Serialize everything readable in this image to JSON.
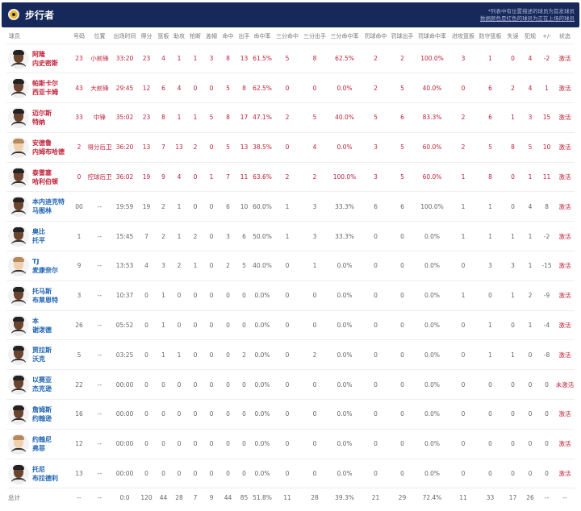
{
  "team": {
    "name": "步行者",
    "logo_color": "#f2b619",
    "header_bg": "#17295a"
  },
  "notes": [
    "*列表中有位置描述的球员为首发球员",
    "数据颜色是红色的球员为正在上场的球员"
  ],
  "columns": [
    "球员",
    "号码",
    "位置",
    "出场时间",
    "得分",
    "篮板",
    "助攻",
    "抢断",
    "盖帽",
    "命中",
    "出手",
    "命中率",
    "三分命中",
    "三分出手",
    "三分命中率",
    "罚球命中",
    "罚球出手",
    "罚球命中率",
    "进攻篮板",
    "防守篮板",
    "失误",
    "犯规",
    "+/-",
    "状态"
  ],
  "players": [
    {
      "name1": "阿隆",
      "name2": "内史密斯",
      "starter": true,
      "light": false,
      "stats": [
        "23",
        "小前锋",
        "33:20",
        "23",
        "4",
        "1",
        "1",
        "3",
        "8",
        "13",
        "61.5%",
        "5",
        "8",
        "62.5%",
        "2",
        "2",
        "100.0%",
        "3",
        "1",
        "0",
        "4",
        "-2",
        "激活"
      ]
    },
    {
      "name1": "帕斯卡尔",
      "name2": "西亚卡姆",
      "starter": true,
      "light": false,
      "stats": [
        "43",
        "大前锋",
        "29:45",
        "12",
        "6",
        "4",
        "0",
        "0",
        "5",
        "8",
        "62.5%",
        "0",
        "0",
        "0.0%",
        "2",
        "5",
        "40.0%",
        "0",
        "6",
        "2",
        "4",
        "1",
        "激活"
      ]
    },
    {
      "name1": "迈尔斯",
      "name2": "特纳",
      "starter": true,
      "light": false,
      "stats": [
        "33",
        "中锋",
        "35:02",
        "23",
        "8",
        "1",
        "1",
        "5",
        "8",
        "17",
        "47.1%",
        "2",
        "5",
        "40.0%",
        "5",
        "6",
        "83.3%",
        "2",
        "6",
        "1",
        "3",
        "15",
        "激活"
      ]
    },
    {
      "name1": "安德鲁",
      "name2": "内姆布哈德",
      "starter": true,
      "light": true,
      "stats": [
        "2",
        "得分后卫",
        "36:20",
        "13",
        "7",
        "13",
        "2",
        "0",
        "5",
        "13",
        "38.5%",
        "0",
        "4",
        "0.0%",
        "3",
        "5",
        "60.0%",
        "2",
        "5",
        "8",
        "5",
        "10",
        "激活"
      ]
    },
    {
      "name1": "泰雷塞",
      "name2": "哈利伯顿",
      "starter": true,
      "light": false,
      "stats": [
        "0",
        "控球后卫",
        "36:02",
        "19",
        "9",
        "4",
        "0",
        "1",
        "7",
        "11",
        "63.6%",
        "2",
        "2",
        "100.0%",
        "3",
        "5",
        "60.0%",
        "1",
        "8",
        "0",
        "1",
        "11",
        "激活"
      ]
    },
    {
      "name1": "本内迪克特",
      "name2": "马图林",
      "starter": false,
      "light": false,
      "stats": [
        "00",
        "--",
        "19:59",
        "19",
        "2",
        "1",
        "0",
        "0",
        "6",
        "10",
        "60.0%",
        "1",
        "3",
        "33.3%",
        "6",
        "6",
        "100.0%",
        "1",
        "1",
        "0",
        "4",
        "8",
        "激活"
      ]
    },
    {
      "name1": "奥比",
      "name2": "托平",
      "starter": false,
      "light": false,
      "stats": [
        "1",
        "--",
        "15:45",
        "7",
        "2",
        "1",
        "2",
        "0",
        "3",
        "6",
        "50.0%",
        "1",
        "3",
        "33.3%",
        "0",
        "0",
        "0.0%",
        "1",
        "1",
        "1",
        "1",
        "-2",
        "激活"
      ]
    },
    {
      "name1": "TJ",
      "name2": "麦康奈尔",
      "starter": false,
      "light": true,
      "stats": [
        "9",
        "--",
        "13:53",
        "4",
        "3",
        "2",
        "1",
        "0",
        "2",
        "5",
        "40.0%",
        "0",
        "1",
        "0.0%",
        "0",
        "0",
        "0.0%",
        "0",
        "3",
        "3",
        "1",
        "-15",
        "激活"
      ]
    },
    {
      "name1": "托马斯",
      "name2": "布莱恩特",
      "starter": false,
      "light": false,
      "stats": [
        "3",
        "--",
        "10:37",
        "0",
        "1",
        "0",
        "0",
        "0",
        "0",
        "0",
        "0.0%",
        "0",
        "0",
        "0.0%",
        "0",
        "0",
        "0.0%",
        "1",
        "0",
        "1",
        "2",
        "-9",
        "激活"
      ]
    },
    {
      "name1": "本",
      "name2": "谢泼德",
      "starter": false,
      "light": false,
      "stats": [
        "26",
        "--",
        "05:52",
        "0",
        "1",
        "0",
        "0",
        "0",
        "0",
        "0",
        "0.0%",
        "0",
        "0",
        "0.0%",
        "0",
        "0",
        "0.0%",
        "0",
        "1",
        "0",
        "1",
        "-4",
        "激活"
      ]
    },
    {
      "name1": "贾拉斯",
      "name2": "沃克",
      "starter": false,
      "light": false,
      "stats": [
        "5",
        "--",
        "03:25",
        "0",
        "1",
        "1",
        "0",
        "0",
        "0",
        "2",
        "0.0%",
        "0",
        "2",
        "0.0%",
        "0",
        "0",
        "0.0%",
        "0",
        "1",
        "1",
        "0",
        "-8",
        "激活"
      ]
    },
    {
      "name1": "以赛亚",
      "name2": "杰克逊",
      "starter": false,
      "light": false,
      "stats": [
        "22",
        "--",
        "00:00",
        "0",
        "0",
        "0",
        "0",
        "0",
        "0",
        "0",
        "0.0%",
        "0",
        "0",
        "0.0%",
        "0",
        "0",
        "0.0%",
        "0",
        "0",
        "0",
        "0",
        "0",
        "未激活"
      ]
    },
    {
      "name1": "詹姆斯",
      "name2": "约翰逊",
      "starter": false,
      "light": false,
      "stats": [
        "16",
        "--",
        "00:00",
        "0",
        "0",
        "0",
        "0",
        "0",
        "0",
        "0",
        "0.0%",
        "0",
        "0",
        "0.0%",
        "0",
        "0",
        "0.0%",
        "0",
        "0",
        "0",
        "0",
        "0",
        "激活"
      ]
    },
    {
      "name1": "约翰尼",
      "name2": "弗菲",
      "starter": false,
      "light": true,
      "stats": [
        "12",
        "--",
        "00:00",
        "0",
        "0",
        "0",
        "0",
        "0",
        "0",
        "0",
        "0.0%",
        "0",
        "0",
        "0.0%",
        "0",
        "0",
        "0.0%",
        "0",
        "0",
        "0",
        "0",
        "0",
        "激活"
      ]
    },
    {
      "name1": "托尼",
      "name2": "布拉德利",
      "starter": false,
      "light": false,
      "stats": [
        "13",
        "--",
        "00:00",
        "0",
        "0",
        "0",
        "0",
        "0",
        "0",
        "0",
        "0.0%",
        "0",
        "0",
        "0.0%",
        "0",
        "0",
        "0.0%",
        "0",
        "0",
        "0",
        "0",
        "0",
        "激活"
      ]
    }
  ],
  "total": {
    "label": "总计",
    "stats": [
      "--",
      "--",
      "0:0",
      "120",
      "44",
      "28",
      "7",
      "9",
      "44",
      "85",
      "51.8%",
      "11",
      "28",
      "39.3%",
      "21",
      "29",
      "72.4%",
      "11",
      "33",
      "17",
      "26",
      "--",
      "--"
    ]
  }
}
